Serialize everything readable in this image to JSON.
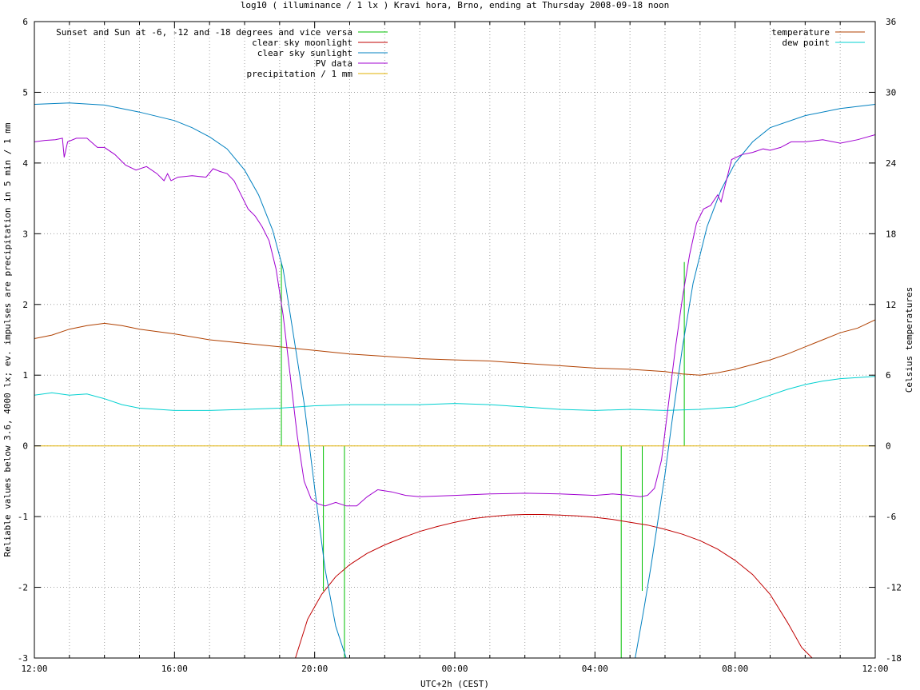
{
  "chart_data": {
    "type": "line",
    "title": "log10 ( illuminance / 1 lx ) Kravi hora, Brno, ending at Thursday 2008-09-18 noon",
    "xlabel": "UTC+2h (CEST)",
    "ylabel": "Reliable values below 3.6, 4000 lx; ev. impulses are precipitation in 5 min / 1 mm",
    "y2label": "Celsius temperatures",
    "xlim": [
      12,
      36
    ],
    "ylim": [
      -3,
      6
    ],
    "y2lim": [
      -18,
      36
    ],
    "x_ticks": [
      {
        "value": 12,
        "label": "12:00"
      },
      {
        "value": 16,
        "label": "16:00"
      },
      {
        "value": 20,
        "label": "20:00"
      },
      {
        "value": 24,
        "label": "00:00"
      },
      {
        "value": 28,
        "label": "04:00"
      },
      {
        "value": 32,
        "label": "08:00"
      },
      {
        "value": 36,
        "label": "12:00"
      }
    ],
    "y_ticks": [
      "-3",
      "-2",
      "-1",
      "0",
      "1",
      "2",
      "3",
      "4",
      "5",
      "6"
    ],
    "y2_ticks": [
      "-18",
      "-12",
      "-6",
      "0",
      "6",
      "12",
      "18",
      "24",
      "30",
      "36"
    ],
    "grid": true,
    "legend_left": {
      "placement": "top-left",
      "entries": [
        {
          "name": "Sunset and Sun at -6, -12 and -18 degrees and vice versa",
          "color": "#00c000"
        },
        {
          "name": "clear sky moonlight",
          "color": "#c00000"
        },
        {
          "name": "clear sky sunlight",
          "color": "#0080c0"
        },
        {
          "name": "PV data",
          "color": "#a000d0"
        },
        {
          "name": "precipitation / 1 mm",
          "color": "#e0b000"
        }
      ]
    },
    "legend_right": {
      "placement": "top-right",
      "entries": [
        {
          "name": "temperature",
          "color": "#b04000"
        },
        {
          "name": "dew point",
          "color": "#00d0d0"
        }
      ]
    },
    "sun_events": [
      {
        "x": 19.05,
        "from": 0,
        "to": 2.6
      },
      {
        "x": 20.25,
        "from": 0,
        "to": -2.05
      },
      {
        "x": 20.85,
        "from": 0,
        "to": -3
      },
      {
        "x": 28.75,
        "from": 0,
        "to": -3
      },
      {
        "x": 29.35,
        "from": 0,
        "to": -2.05
      },
      {
        "x": 30.55,
        "from": 0,
        "to": 2.6
      }
    ],
    "series": [
      {
        "name": "clear sky sunlight",
        "axis": "y",
        "x": [
          12.0,
          13.0,
          14.0,
          15.0,
          16.0,
          16.5,
          17.0,
          17.5,
          18.0,
          18.4,
          18.8,
          19.1,
          19.4,
          19.7,
          20.0,
          20.3,
          20.6,
          20.9,
          29.15,
          29.4,
          29.6,
          29.8,
          30.0,
          30.2,
          30.5,
          30.8,
          31.2,
          31.6,
          32.0,
          32.5,
          33.0,
          34.0,
          35.0,
          36.0
        ],
        "y": [
          4.83,
          4.85,
          4.82,
          4.72,
          4.6,
          4.5,
          4.37,
          4.2,
          3.9,
          3.55,
          3.05,
          2.5,
          1.55,
          0.6,
          -0.6,
          -1.75,
          -2.55,
          -3.0,
          -3.0,
          -2.3,
          -1.7,
          -1.05,
          -0.4,
          0.35,
          1.4,
          2.3,
          3.1,
          3.62,
          4.0,
          4.3,
          4.5,
          4.67,
          4.77,
          4.83
        ]
      },
      {
        "name": "clear sky moonlight",
        "axis": "y",
        "x": [
          19.45,
          19.8,
          20.2,
          20.6,
          21.0,
          21.5,
          22.0,
          22.5,
          23.0,
          23.5,
          24.0,
          24.5,
          25.0,
          25.5,
          26.0,
          26.5,
          27.0,
          27.5,
          28.0,
          28.5,
          29.0,
          29.5,
          30.0,
          30.5,
          31.0,
          31.5,
          32.0,
          32.5,
          33.0,
          33.5,
          33.9,
          34.2
        ],
        "y": [
          -3.0,
          -2.45,
          -2.1,
          -1.85,
          -1.68,
          -1.52,
          -1.4,
          -1.3,
          -1.21,
          -1.14,
          -1.08,
          -1.03,
          -1.0,
          -0.98,
          -0.97,
          -0.97,
          -0.98,
          -0.99,
          -1.01,
          -1.04,
          -1.08,
          -1.12,
          -1.18,
          -1.25,
          -1.34,
          -1.46,
          -1.62,
          -1.82,
          -2.1,
          -2.5,
          -2.85,
          -3.0
        ]
      },
      {
        "name": "PV data",
        "axis": "y",
        "x": [
          12.0,
          12.3,
          12.6,
          12.8,
          12.85,
          12.95,
          13.2,
          13.5,
          13.8,
          14.0,
          14.3,
          14.6,
          14.9,
          15.2,
          15.5,
          15.7,
          15.8,
          15.9,
          16.1,
          16.5,
          16.9,
          17.1,
          17.3,
          17.5,
          17.7,
          17.9,
          18.1,
          18.3,
          18.5,
          18.7,
          18.9,
          19.1,
          19.3,
          19.5,
          19.7,
          19.9,
          20.1,
          20.3,
          20.6,
          20.9,
          21.2,
          21.5,
          21.8,
          22.2,
          22.6,
          23.0,
          24.0,
          25.0,
          26.0,
          27.0,
          28.0,
          28.5,
          29.0,
          29.3,
          29.5,
          29.7,
          29.9,
          30.1,
          30.3,
          30.5,
          30.7,
          30.9,
          31.1,
          31.3,
          31.5,
          31.6,
          31.7,
          31.8,
          31.9,
          32.2,
          32.5,
          32.8,
          33.0,
          33.3,
          33.6,
          34.0,
          34.5,
          35.0,
          35.5,
          36.0
        ],
        "y": [
          4.3,
          4.32,
          4.33,
          4.35,
          4.08,
          4.3,
          4.35,
          4.35,
          4.22,
          4.22,
          4.12,
          3.97,
          3.9,
          3.95,
          3.85,
          3.75,
          3.85,
          3.75,
          3.8,
          3.82,
          3.8,
          3.92,
          3.88,
          3.85,
          3.75,
          3.55,
          3.35,
          3.25,
          3.1,
          2.9,
          2.5,
          1.85,
          1.0,
          0.15,
          -0.5,
          -0.75,
          -0.82,
          -0.85,
          -0.8,
          -0.85,
          -0.85,
          -0.72,
          -0.62,
          -0.65,
          -0.7,
          -0.72,
          -0.7,
          -0.68,
          -0.67,
          -0.68,
          -0.7,
          -0.68,
          -0.7,
          -0.72,
          -0.7,
          -0.6,
          -0.2,
          0.6,
          1.4,
          2.1,
          2.7,
          3.15,
          3.35,
          3.4,
          3.55,
          3.45,
          3.65,
          3.85,
          4.05,
          4.12,
          4.15,
          4.2,
          4.18,
          4.22,
          4.3,
          4.3,
          4.33,
          4.28,
          4.33,
          4.4
        ]
      },
      {
        "name": "precipitation / 1 mm",
        "axis": "y",
        "x": [
          12.0,
          36.0
        ],
        "y": [
          0.0,
          0.0
        ]
      },
      {
        "name": "temperature",
        "axis": "y2",
        "x": [
          12.0,
          12.5,
          13.0,
          13.5,
          14.0,
          14.5,
          15.0,
          16.0,
          17.0,
          18.0,
          19.0,
          20.0,
          21.0,
          22.0,
          23.0,
          24.0,
          25.0,
          26.0,
          27.0,
          28.0,
          29.0,
          30.0,
          30.5,
          31.0,
          31.5,
          32.0,
          32.5,
          33.0,
          33.5,
          34.0,
          34.5,
          35.0,
          35.5,
          36.0
        ],
        "y": [
          9.1,
          9.4,
          9.9,
          10.2,
          10.4,
          10.2,
          9.9,
          9.5,
          9.0,
          8.7,
          8.4,
          8.1,
          7.8,
          7.6,
          7.4,
          7.3,
          7.2,
          7.0,
          6.8,
          6.6,
          6.5,
          6.3,
          6.1,
          6.0,
          6.2,
          6.5,
          6.9,
          7.3,
          7.8,
          8.4,
          9.0,
          9.6,
          10.0,
          10.7
        ]
      },
      {
        "name": "dew point",
        "axis": "y2",
        "x": [
          12.0,
          12.5,
          13.0,
          13.5,
          14.0,
          14.5,
          15.0,
          16.0,
          17.0,
          18.0,
          19.0,
          20.0,
          21.0,
          22.0,
          23.0,
          24.0,
          25.0,
          26.0,
          27.0,
          28.0,
          29.0,
          30.0,
          31.0,
          31.5,
          32.0,
          32.5,
          33.0,
          33.5,
          34.0,
          34.5,
          35.0,
          35.5,
          36.0
        ],
        "y": [
          4.3,
          4.5,
          4.3,
          4.4,
          4.0,
          3.5,
          3.2,
          3.0,
          3.0,
          3.1,
          3.2,
          3.4,
          3.5,
          3.5,
          3.5,
          3.6,
          3.5,
          3.3,
          3.1,
          3.0,
          3.1,
          3.0,
          3.1,
          3.2,
          3.3,
          3.8,
          4.3,
          4.8,
          5.2,
          5.5,
          5.7,
          5.8,
          5.9
        ]
      }
    ]
  }
}
